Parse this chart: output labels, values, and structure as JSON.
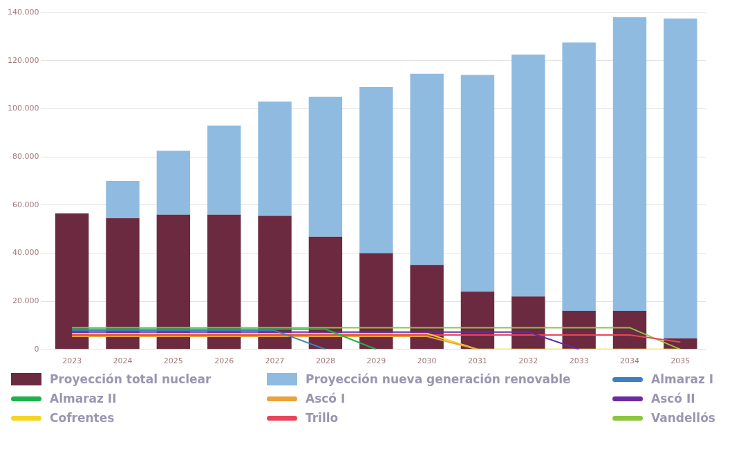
{
  "chart_data": {
    "type": "bar",
    "stacked": true,
    "categories": [
      "2023",
      "2024",
      "2025",
      "2026",
      "2027",
      "2028",
      "2029",
      "2030",
      "2031",
      "2032",
      "2033",
      "2034",
      "2035"
    ],
    "ylim": [
      0,
      140000
    ],
    "yticks": [
      {
        "value": 0,
        "label": "0"
      },
      {
        "value": 20000,
        "label": "20.000"
      },
      {
        "value": 40000,
        "label": "40.000"
      },
      {
        "value": 60000,
        "label": "60.000"
      },
      {
        "value": 80000,
        "label": "80.000"
      },
      {
        "value": 100000,
        "label": "100.000"
      },
      {
        "value": 120000,
        "label": "120.000"
      },
      {
        "value": 140000,
        "label": "140.000"
      }
    ],
    "grid": "y",
    "legend": "bottom",
    "marker": "none",
    "series": [
      {
        "name": "Proyección total nuclear",
        "color": "#6b2a3f",
        "values": [
          56500,
          54500,
          56000,
          56000,
          55500,
          46800,
          40000,
          35000,
          24000,
          22000,
          16000,
          16000,
          4500
        ]
      },
      {
        "name": "Proyección nueva generación renovable",
        "color": "#8fbbe0",
        "values": [
          0,
          15500,
          26500,
          37000,
          47500,
          58200,
          69000,
          79500,
          90000,
          100500,
          111500,
          122000,
          133000
        ]
      },
      {
        "name": "Almaraz I",
        "type": "line",
        "color": "#3d7fc1",
        "values": [
          7800,
          7800,
          7800,
          7800,
          7800,
          0,
          null,
          null,
          null,
          null,
          null,
          null,
          null
        ]
      },
      {
        "name": "Almaraz II",
        "type": "line",
        "color": "#1db34a",
        "values": [
          8400,
          8400,
          8400,
          8400,
          8400,
          8400,
          0,
          null,
          null,
          null,
          null,
          null,
          null
        ]
      },
      {
        "name": "Ascó I",
        "type": "line",
        "color": "#e8a33a",
        "values": [
          5400,
          5400,
          5400,
          5400,
          5400,
          5400,
          5400,
          5400,
          0,
          null,
          null,
          null,
          null
        ]
      },
      {
        "name": "Ascó II",
        "type": "line",
        "color": "#6a2aa0",
        "values": [
          7200,
          7200,
          7200,
          7200,
          7200,
          7200,
          7200,
          7200,
          7200,
          7200,
          0,
          null,
          null
        ]
      },
      {
        "name": "Cofrentes",
        "type": "line",
        "color": "#f5d522",
        "values": [
          6600,
          6600,
          6600,
          6600,
          6600,
          6600,
          6600,
          6600,
          0,
          0,
          0,
          0,
          0
        ]
      },
      {
        "name": "Trillo",
        "type": "line",
        "color": "#e8455a",
        "values": [
          6000,
          6000,
          6000,
          6000,
          6000,
          6000,
          6000,
          6000,
          6000,
          6000,
          6000,
          6000,
          3000
        ]
      },
      {
        "name": "Vandellós",
        "type": "line",
        "color": "#8cc63f",
        "values": [
          9000,
          9000,
          9000,
          9000,
          9000,
          9000,
          9000,
          9000,
          9000,
          9000,
          9000,
          9000,
          0
        ]
      }
    ]
  }
}
